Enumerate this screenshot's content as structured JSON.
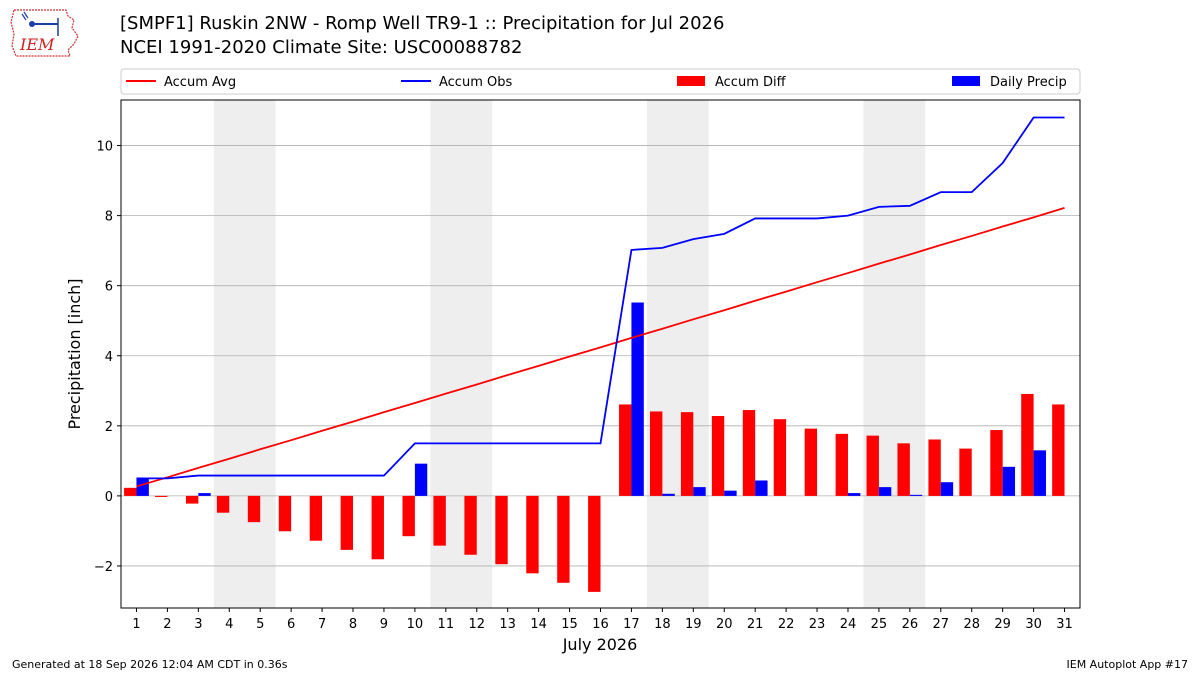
{
  "header": {
    "title_line1": "[SMPF1] Ruskin 2NW - Romp Well TR9-1 :: Precipitation for Jul 2026",
    "title_line2": "NCEI 1991-2020 Climate Site: USC00088782",
    "logo_text": "IEM"
  },
  "footer": {
    "left": "Generated at 18 Sep 2026 12:04 AM CDT in 0.36s",
    "right": "IEM Autoplot App #17"
  },
  "colors": {
    "avg": "#ff0000",
    "obs": "#0000ff",
    "diff": "#ff0000",
    "daily": "#0000ff",
    "weekend_shade": "#eeeeee",
    "grid": "#b0b0b0"
  },
  "chart_data": {
    "type": "bar",
    "xlabel": "July 2026",
    "ylabel": "Precipitation [inch]",
    "x": [
      1,
      2,
      3,
      4,
      5,
      6,
      7,
      8,
      9,
      10,
      11,
      12,
      13,
      14,
      15,
      16,
      17,
      18,
      19,
      20,
      21,
      22,
      23,
      24,
      25,
      26,
      27,
      28,
      29,
      30,
      31
    ],
    "xlim": [
      0.5,
      31.5
    ],
    "ylim": [
      -3.2,
      11.3
    ],
    "yticks": [
      -2,
      0,
      2,
      4,
      6,
      8,
      10
    ],
    "yticklabels": [
      "−2",
      "0",
      "2",
      "4",
      "6",
      "8",
      "10"
    ],
    "grid": "y",
    "legend_position": "top",
    "shaded_day_ranges": [
      [
        3.5,
        5.5
      ],
      [
        10.5,
        12.5
      ],
      [
        17.5,
        19.5
      ],
      [
        24.5,
        26.5
      ]
    ],
    "series": [
      {
        "name": "Accum Avg",
        "kind": "line",
        "values": [
          0.27,
          0.53,
          0.8,
          1.06,
          1.33,
          1.59,
          1.86,
          2.12,
          2.39,
          2.65,
          2.92,
          3.18,
          3.45,
          3.71,
          3.98,
          4.24,
          4.51,
          4.77,
          5.04,
          5.3,
          5.57,
          5.83,
          6.1,
          6.36,
          6.63,
          6.89,
          7.16,
          7.42,
          7.69,
          7.95,
          8.22
        ]
      },
      {
        "name": "Accum Obs",
        "kind": "line",
        "values": [
          0.5,
          0.5,
          0.58,
          0.58,
          0.58,
          0.58,
          0.58,
          0.58,
          0.58,
          1.5,
          1.5,
          1.5,
          1.5,
          1.5,
          1.5,
          1.5,
          7.02,
          7.08,
          7.33,
          7.48,
          7.92,
          7.92,
          7.92,
          8.0,
          8.25,
          8.28,
          8.67,
          8.67,
          9.5,
          10.8,
          10.8
        ]
      },
      {
        "name": "Accum Diff",
        "kind": "bar",
        "values": [
          0.23,
          -0.03,
          -0.22,
          -0.48,
          -0.75,
          -1.01,
          -1.28,
          -1.54,
          -1.81,
          -1.15,
          -1.42,
          -1.68,
          -1.95,
          -2.21,
          -2.48,
          -2.74,
          2.61,
          2.41,
          2.39,
          2.28,
          2.45,
          2.19,
          1.92,
          1.77,
          1.72,
          1.5,
          1.61,
          1.35,
          1.88,
          2.91,
          2.61
        ]
      },
      {
        "name": "Daily Precip",
        "kind": "bar",
        "values": [
          0.5,
          0.0,
          0.08,
          0.0,
          0.0,
          0.0,
          0.0,
          0.0,
          0.0,
          0.92,
          0.0,
          0.0,
          0.0,
          0.0,
          0.0,
          0.0,
          5.52,
          0.06,
          0.25,
          0.15,
          0.44,
          0.0,
          0.0,
          0.08,
          0.25,
          0.03,
          0.39,
          0.0,
          0.83,
          1.3,
          0.0
        ]
      }
    ]
  }
}
